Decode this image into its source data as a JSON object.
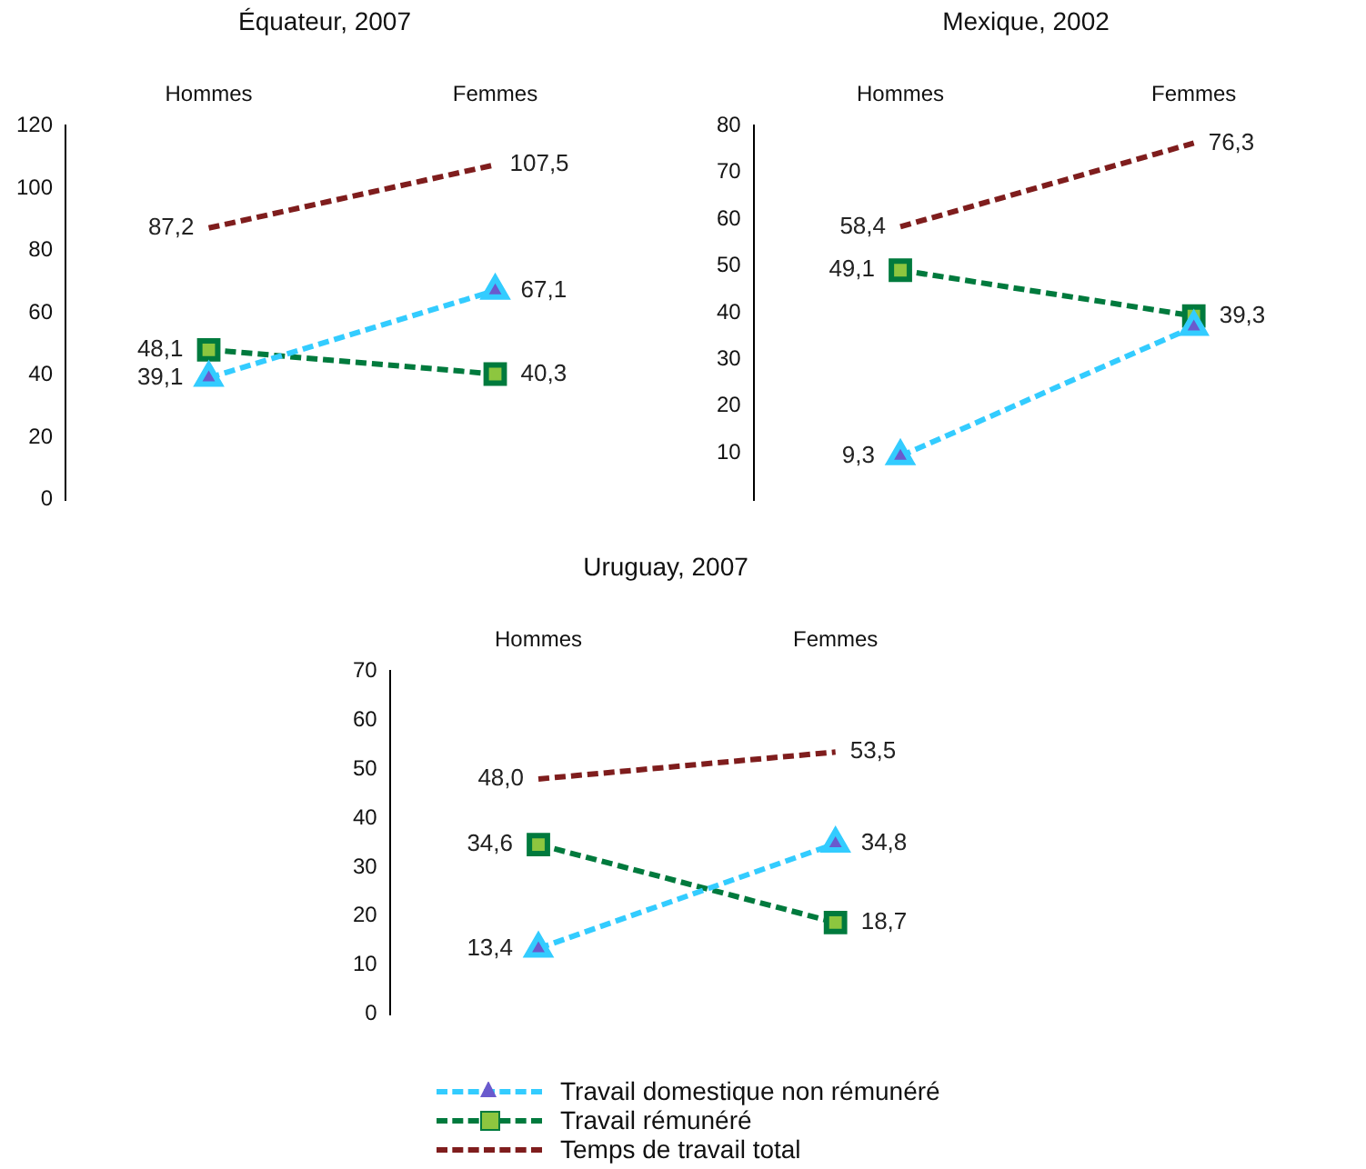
{
  "chart_data": [
    {
      "type": "line",
      "title": "Équateur, 2007",
      "categories": [
        "Hommes",
        "Femmes"
      ],
      "ylim": [
        0,
        120
      ],
      "yticks": [
        0,
        20,
        40,
        60,
        80,
        100,
        120
      ],
      "grid": false,
      "legend": false,
      "line_style": "dashed",
      "series": [
        {
          "color": "#33ccff",
          "marker": "triangle",
          "values": [
            39.1,
            67.1
          ],
          "value_labels": [
            "39,1",
            "67,1"
          ]
        },
        {
          "color": "#007a3d",
          "marker": "square",
          "values": [
            48.1,
            40.3
          ],
          "value_labels": [
            "48,1",
            "40,3"
          ]
        },
        {
          "color": "#7f1d1d",
          "marker": "none",
          "values": [
            87.2,
            107.5
          ],
          "value_labels": [
            "87,2",
            "107,5"
          ]
        }
      ]
    },
    {
      "type": "line",
      "title": "Mexique, 2002",
      "categories": [
        "Hommes",
        "Femmes"
      ],
      "ylim": [
        0,
        80
      ],
      "yticks": [
        10,
        20,
        30,
        40,
        50,
        60,
        70,
        80
      ],
      "grid": false,
      "legend": false,
      "line_style": "dashed",
      "series": [
        {
          "color": "#33ccff",
          "marker": "triangle",
          "values": [
            9.3,
            37.0
          ],
          "value_labels": [
            "9,3",
            null
          ]
        },
        {
          "color": "#007a3d",
          "marker": "square",
          "values": [
            49.1,
            39.3
          ],
          "value_labels": [
            "49,1",
            "39,3"
          ]
        },
        {
          "color": "#7f1d1d",
          "marker": "none",
          "values": [
            58.4,
            76.3
          ],
          "value_labels": [
            "58,4",
            "76,3"
          ]
        }
      ]
    },
    {
      "type": "line",
      "title": "Uruguay, 2007",
      "categories": [
        "Hommes",
        "Femmes"
      ],
      "ylim": [
        0,
        70
      ],
      "yticks": [
        0,
        10,
        20,
        30,
        40,
        50,
        60,
        70
      ],
      "grid": false,
      "legend": "bottom",
      "line_style": "dashed",
      "series": [
        {
          "name": "Travail domestique non rémunéré",
          "color": "#33ccff",
          "marker": "triangle",
          "values": [
            13.4,
            34.8
          ],
          "value_labels": [
            "13,4",
            "34,8"
          ]
        },
        {
          "name": "Travail rémunéré",
          "color": "#007a3d",
          "marker": "square",
          "values": [
            34.6,
            18.7
          ],
          "value_labels": [
            "34,6",
            "18,7"
          ]
        },
        {
          "name": "Temps de travail total",
          "color": "#7f1d1d",
          "marker": "none",
          "values": [
            48.0,
            53.5
          ],
          "value_labels": [
            "48,0",
            "53,5"
          ]
        }
      ]
    }
  ]
}
